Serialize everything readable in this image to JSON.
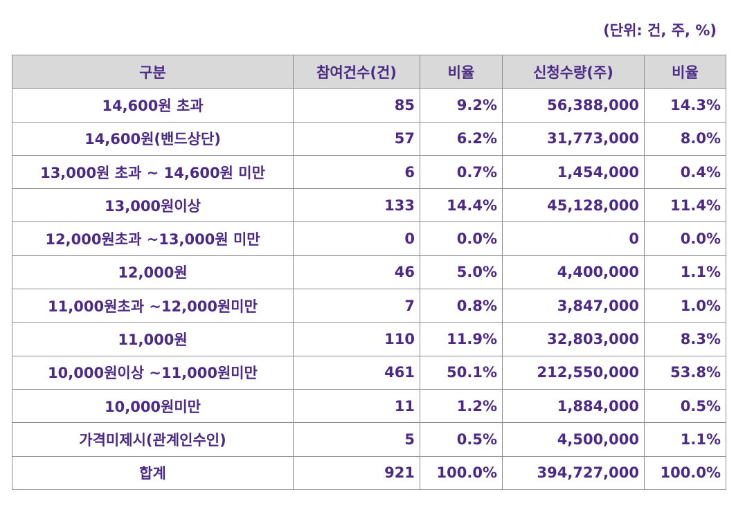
{
  "unit_note": "(단위: 건, 주, %)",
  "headers": [
    "구분",
    "참여건수(건)",
    "비율",
    "신청수량(주)",
    "비율"
  ],
  "rows": [
    [
      "14,600원 초과",
      "85",
      "9.2%",
      "56,388,000",
      "14.3%"
    ],
    [
      "14,600원(밴드상단)",
      "57",
      "6.2%",
      "31,773,000",
      "8.0%"
    ],
    [
      "13,000원 초과 ~ 14,600원 미만",
      "6",
      "0.7%",
      "1,454,000",
      "0.4%"
    ],
    [
      "13,000원이상",
      "133",
      "14.4%",
      "45,128,000",
      "11.4%"
    ],
    [
      "12,000원초과 ~13,000원 미만",
      "0",
      "0.0%",
      "0",
      "0.0%"
    ],
    [
      "12,000원",
      "46",
      "5.0%",
      "4,400,000",
      "1.1%"
    ],
    [
      "11,000원초과 ~12,000원미만",
      "7",
      "0.8%",
      "3,847,000",
      "1.0%"
    ],
    [
      "11,000원",
      "110",
      "11.9%",
      "32,803,000",
      "8.3%"
    ],
    [
      "10,000원이상 ~11,000원미만",
      "461",
      "50.1%",
      "212,550,000",
      "53.8%"
    ],
    [
      "10,000원미만",
      "11",
      "1.2%",
      "1,884,000",
      "0.5%"
    ],
    [
      "가격미제시(관계인수인)",
      "5",
      "0.5%",
      "4,500,000",
      "1.1%"
    ],
    [
      "합계",
      "921",
      "100.0%",
      "394,727,000",
      "100.0%"
    ]
  ],
  "colors": {
    "text": "#4b2a86",
    "header_bg": "#d9d9d9",
    "border": "#8c8c8c"
  }
}
